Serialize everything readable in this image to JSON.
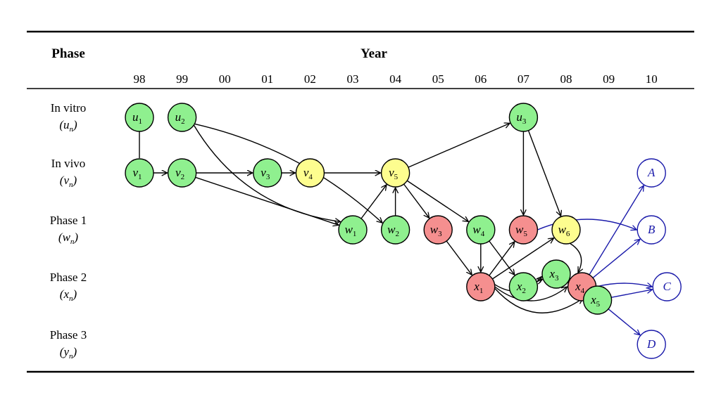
{
  "header": {
    "phase_label": "Phase",
    "year_label": "Year"
  },
  "years": [
    "98",
    "99",
    "00",
    "01",
    "02",
    "03",
    "04",
    "05",
    "06",
    "07",
    "08",
    "09",
    "10"
  ],
  "phases": [
    {
      "name": "In vitro",
      "symbol": "u",
      "sub": "n"
    },
    {
      "name": "In vivo",
      "symbol": "v",
      "sub": "n"
    },
    {
      "name": "Phase 1",
      "symbol": "w",
      "sub": "n"
    },
    {
      "name": "Phase 2",
      "symbol": "x",
      "sub": "n"
    },
    {
      "name": "Phase 3",
      "symbol": "y",
      "sub": "n"
    }
  ],
  "colors": {
    "green": "#8ff08f",
    "yellow": "#fdfd8f",
    "red": "#f58f8f",
    "outcome": "#1a1aaa",
    "edge": "#000000"
  },
  "nodes": [
    {
      "id": "u1",
      "letter": "u",
      "sub": "1",
      "year": "98",
      "phase": "In vitro",
      "status": "green"
    },
    {
      "id": "u2",
      "letter": "u",
      "sub": "2",
      "year": "99",
      "phase": "In vitro",
      "status": "green"
    },
    {
      "id": "u3",
      "letter": "u",
      "sub": "3",
      "year": "07",
      "phase": "In vitro",
      "status": "green"
    },
    {
      "id": "v1",
      "letter": "v",
      "sub": "1",
      "year": "98",
      "phase": "In vivo",
      "status": "green"
    },
    {
      "id": "v2",
      "letter": "v",
      "sub": "2",
      "year": "99",
      "phase": "In vivo",
      "status": "green"
    },
    {
      "id": "v3",
      "letter": "v",
      "sub": "3",
      "year": "01",
      "phase": "In vivo",
      "status": "green"
    },
    {
      "id": "v4",
      "letter": "v",
      "sub": "4",
      "year": "02",
      "phase": "In vivo",
      "status": "yellow"
    },
    {
      "id": "v5",
      "letter": "v",
      "sub": "5",
      "year": "04",
      "phase": "In vivo",
      "status": "yellow"
    },
    {
      "id": "w1",
      "letter": "w",
      "sub": "1",
      "year": "03",
      "phase": "Phase 1",
      "status": "green"
    },
    {
      "id": "w2",
      "letter": "w",
      "sub": "2",
      "year": "04",
      "phase": "Phase 1",
      "status": "green"
    },
    {
      "id": "w3",
      "letter": "w",
      "sub": "3",
      "year": "05",
      "phase": "Phase 1",
      "status": "red"
    },
    {
      "id": "w4",
      "letter": "w",
      "sub": "4",
      "year": "06",
      "phase": "Phase 1",
      "status": "green"
    },
    {
      "id": "w5",
      "letter": "w",
      "sub": "5",
      "year": "07",
      "phase": "Phase 1",
      "status": "red"
    },
    {
      "id": "w6",
      "letter": "w",
      "sub": "6",
      "year": "08",
      "phase": "Phase 1",
      "status": "yellow"
    },
    {
      "id": "x1",
      "letter": "x",
      "sub": "1",
      "year": "06",
      "phase": "Phase 2",
      "status": "red"
    },
    {
      "id": "x2",
      "letter": "x",
      "sub": "2",
      "year": "07",
      "phase": "Phase 2",
      "status": "green"
    },
    {
      "id": "x3",
      "letter": "x",
      "sub": "3",
      "year": "08",
      "phase": "Phase 2",
      "status": "green"
    },
    {
      "id": "x4",
      "letter": "x",
      "sub": "4",
      "year": "09",
      "phase": "Phase 2",
      "status": "red"
    },
    {
      "id": "x5",
      "letter": "x",
      "sub": "5",
      "year": "09",
      "phase": "Phase 2",
      "status": "green"
    },
    {
      "id": "A",
      "letter": "A",
      "sub": "",
      "year": "10",
      "phase": "In vivo",
      "status": "outcome"
    },
    {
      "id": "B",
      "letter": "B",
      "sub": "",
      "year": "10",
      "phase": "Phase 1",
      "status": "outcome"
    },
    {
      "id": "C",
      "letter": "C",
      "sub": "",
      "year": "10",
      "phase": "Phase 2",
      "status": "outcome"
    },
    {
      "id": "D",
      "letter": "D",
      "sub": "",
      "year": "10",
      "phase": "Phase 3",
      "status": "outcome"
    }
  ],
  "edges": [
    {
      "from": "u1",
      "to": "v1",
      "arrow": false
    },
    {
      "from": "v1",
      "to": "v2"
    },
    {
      "from": "v2",
      "to": "v3"
    },
    {
      "from": "v3",
      "to": "v4"
    },
    {
      "from": "v4",
      "to": "v5"
    },
    {
      "from": "v2",
      "to": "w1"
    },
    {
      "from": "u2",
      "to": "w1"
    },
    {
      "from": "u2",
      "to": "w2"
    },
    {
      "from": "w1",
      "to": "v5"
    },
    {
      "from": "w2",
      "to": "v5"
    },
    {
      "from": "v5",
      "to": "u3"
    },
    {
      "from": "v5",
      "to": "w3"
    },
    {
      "from": "v5",
      "to": "w4"
    },
    {
      "from": "u3",
      "to": "w5"
    },
    {
      "from": "u3",
      "to": "w6"
    },
    {
      "from": "w3",
      "to": "x1"
    },
    {
      "from": "w4",
      "to": "x1"
    },
    {
      "from": "w4",
      "to": "x2"
    },
    {
      "from": "x1",
      "to": "w5"
    },
    {
      "from": "x1",
      "to": "w6"
    },
    {
      "from": "x1",
      "to": "x3"
    },
    {
      "from": "x1",
      "to": "x4"
    },
    {
      "from": "x1",
      "to": "x5"
    },
    {
      "from": "x2",
      "to": "x3"
    },
    {
      "from": "w6",
      "to": "x4"
    },
    {
      "from": "x3",
      "to": "x5"
    },
    {
      "from": "w5",
      "to": "B",
      "outcome": true
    },
    {
      "from": "x4",
      "to": "A",
      "outcome": true
    },
    {
      "from": "x4",
      "to": "B",
      "outcome": true
    },
    {
      "from": "x4",
      "to": "C",
      "outcome": true
    },
    {
      "from": "x5",
      "to": "C",
      "outcome": true
    },
    {
      "from": "x5",
      "to": "D",
      "outcome": true
    }
  ]
}
